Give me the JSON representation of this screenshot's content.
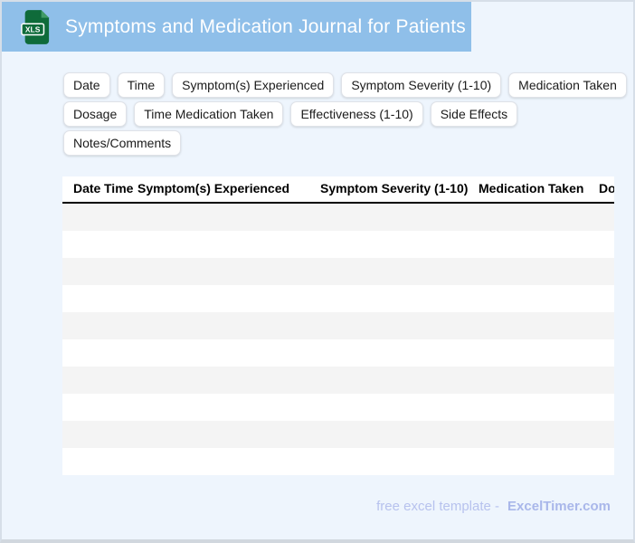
{
  "header": {
    "title": "Symptoms and Medication Journal for Patients",
    "file_icon_label": "XLS"
  },
  "chips": [
    "Date",
    "Time",
    "Symptom(s) Experienced",
    "Symptom Severity (1-10)",
    "Medication Taken",
    "Dosage",
    "Time Medication Taken",
    "Effectiveness (1-10)",
    "Side Effects",
    "Notes/Comments"
  ],
  "table": {
    "columns": [
      "Date",
      "Time",
      "Symptom(s) Experienced",
      "Symptom Severity (1-10)",
      "Medication Taken",
      "Dosage"
    ],
    "row_count": 10,
    "rows_empty": true
  },
  "footer": {
    "prefix": "free excel template -",
    "brand": "ExcelTimer.com"
  },
  "colors": {
    "header_bar": "#8fbfe9",
    "page_background": "#eef5fd",
    "icon_green_dark": "#0f6b3a",
    "icon_green_fold": "#419b67",
    "row_stripe": "#f4f4f4",
    "header_rule": "#000000",
    "footer_text": "#b7c2ee",
    "footer_brand": "#a9b7ea"
  }
}
